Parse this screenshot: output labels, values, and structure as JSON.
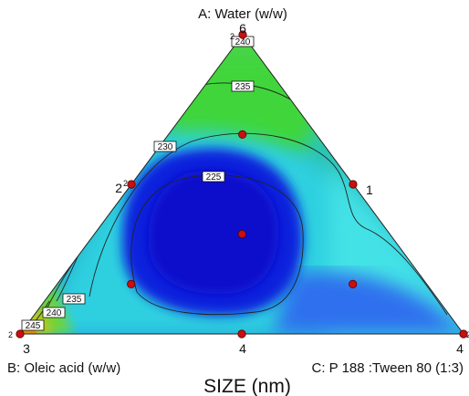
{
  "chart_data": {
    "type": "ternary-contour",
    "title": "SIZE (nm)",
    "components": [
      {
        "key": "A",
        "label": "A: Water (w/w)",
        "corner_value": "6"
      },
      {
        "key": "B",
        "label": "B: Oleic acid (w/w)",
        "corner_value": "3"
      },
      {
        "key": "C",
        "label": "C: P 188 :Tween 80 (1:3)",
        "corner_value": "4"
      }
    ],
    "bottom_mid_value": "4",
    "contour_levels": [
      225,
      230,
      235,
      240,
      245
    ],
    "color_scale": {
      "low": "#1e1ee8",
      "mid": "#27d2d6",
      "high": "#d79c0c"
    },
    "design_points": [
      {
        "id": "vertex-A",
        "a": 1.0,
        "b": 0.0,
        "c": 0.0,
        "label": "2"
      },
      {
        "id": "vertex-B",
        "a": 0.0,
        "b": 1.0,
        "c": 0.0,
        "label": "2"
      },
      {
        "id": "vertex-C",
        "a": 0.0,
        "b": 0.0,
        "c": 1.0,
        "label": "2"
      },
      {
        "id": "edge-AB",
        "a": 0.5,
        "b": 0.5,
        "c": 0.0,
        "label": "2",
        "sup": "2"
      },
      {
        "id": "edge-AC",
        "a": 0.5,
        "b": 0.0,
        "c": 0.5,
        "label": "1"
      },
      {
        "id": "edge-BC",
        "a": 0.0,
        "b": 0.5,
        "c": 0.5,
        "label": ""
      },
      {
        "id": "centroid",
        "a": 0.3333,
        "b": 0.3333,
        "c": 0.3333,
        "label": ""
      },
      {
        "id": "axial-A",
        "a": 0.6667,
        "b": 0.1667,
        "c": 0.1667,
        "label": ""
      },
      {
        "id": "axial-B",
        "a": 0.1667,
        "b": 0.6667,
        "c": 0.1667,
        "label": ""
      },
      {
        "id": "axial-C",
        "a": 0.1667,
        "b": 0.1667,
        "c": 0.6667,
        "label": ""
      }
    ],
    "contour_labels": [
      {
        "value": "240"
      },
      {
        "value": "235"
      },
      {
        "value": "230"
      },
      {
        "value": "225"
      },
      {
        "value": "235"
      },
      {
        "value": "240"
      },
      {
        "value": "245"
      }
    ]
  }
}
